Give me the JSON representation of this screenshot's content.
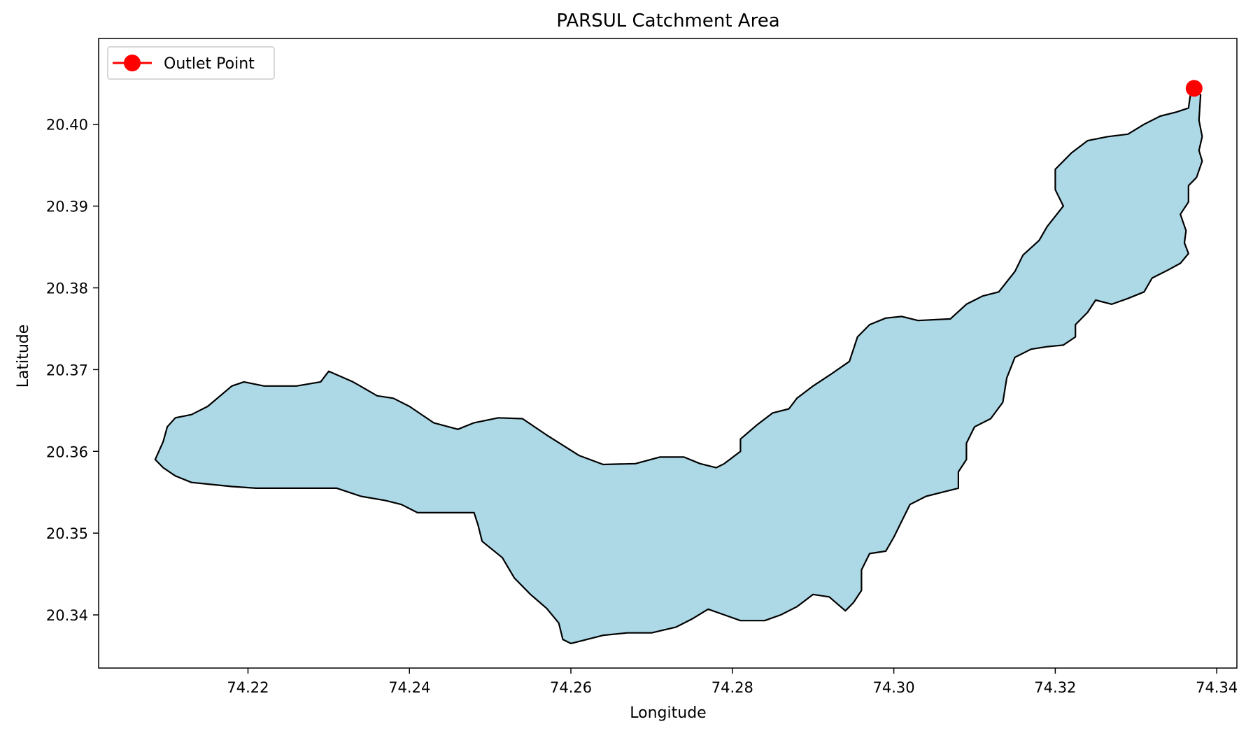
{
  "chart_data": {
    "type": "map",
    "title": "PARSUL Catchment Area",
    "xlabel": "Longitude",
    "ylabel": "Latitude",
    "xlim": [
      74.2015,
      74.3425
    ],
    "ylim": [
      20.3335,
      20.4105
    ],
    "x_ticks": [
      {
        "value": 74.22,
        "label": "74.22"
      },
      {
        "value": 74.24,
        "label": "74.24"
      },
      {
        "value": 74.26,
        "label": "74.26"
      },
      {
        "value": 74.28,
        "label": "74.28"
      },
      {
        "value": 74.3,
        "label": "74.30"
      },
      {
        "value": 74.32,
        "label": "74.32"
      },
      {
        "value": 74.34,
        "label": "74.34"
      }
    ],
    "y_ticks": [
      {
        "value": 20.34,
        "label": "20.34"
      },
      {
        "value": 20.35,
        "label": "20.35"
      },
      {
        "value": 20.36,
        "label": "20.36"
      },
      {
        "value": 20.37,
        "label": "20.37"
      },
      {
        "value": 20.38,
        "label": "20.38"
      },
      {
        "value": 20.39,
        "label": "20.39"
      },
      {
        "value": 20.4,
        "label": "20.40"
      }
    ],
    "grid": false,
    "legend": {
      "placement": "upper-left",
      "entries": [
        {
          "label": "Outlet Point",
          "color": "#ff0000"
        }
      ]
    },
    "catchment": {
      "fill_color": "#add8e6",
      "edge_color": "#000000",
      "boundary": [
        [
          74.2085,
          20.359
        ],
        [
          74.2095,
          20.3612
        ],
        [
          74.21,
          20.363
        ],
        [
          74.211,
          20.3641
        ],
        [
          74.213,
          20.3645
        ],
        [
          74.215,
          20.3655
        ],
        [
          74.218,
          20.368
        ],
        [
          74.2195,
          20.3685
        ],
        [
          74.222,
          20.368
        ],
        [
          74.226,
          20.368
        ],
        [
          74.229,
          20.3685
        ],
        [
          74.23,
          20.3698
        ],
        [
          74.233,
          20.3685
        ],
        [
          74.236,
          20.3668
        ],
        [
          74.238,
          20.3665
        ],
        [
          74.24,
          20.3655
        ],
        [
          74.243,
          20.3635
        ],
        [
          74.246,
          20.3627
        ],
        [
          74.248,
          20.3635
        ],
        [
          74.251,
          20.3641
        ],
        [
          74.254,
          20.364
        ],
        [
          74.257,
          20.362
        ],
        [
          74.261,
          20.3595
        ],
        [
          74.264,
          20.3584
        ],
        [
          74.268,
          20.3585
        ],
        [
          74.271,
          20.3593
        ],
        [
          74.274,
          20.3593
        ],
        [
          74.276,
          20.3585
        ],
        [
          74.278,
          20.358
        ],
        [
          74.279,
          20.3585
        ],
        [
          74.281,
          20.36
        ],
        [
          74.281,
          20.3615
        ],
        [
          74.283,
          20.3632
        ],
        [
          74.285,
          20.3647
        ],
        [
          74.287,
          20.3652
        ],
        [
          74.288,
          20.3665
        ],
        [
          74.29,
          20.368
        ],
        [
          74.292,
          20.3693
        ],
        [
          74.2945,
          20.371
        ],
        [
          74.2955,
          20.374
        ],
        [
          74.297,
          20.3755
        ],
        [
          74.299,
          20.3763
        ],
        [
          74.301,
          20.3765
        ],
        [
          74.303,
          20.376
        ],
        [
          74.307,
          20.3762
        ],
        [
          74.309,
          20.378
        ],
        [
          74.311,
          20.379
        ],
        [
          74.313,
          20.3795
        ],
        [
          74.315,
          20.382
        ],
        [
          74.316,
          20.384
        ],
        [
          74.318,
          20.3858
        ],
        [
          74.319,
          20.3875
        ],
        [
          74.321,
          20.39
        ],
        [
          74.32,
          20.392
        ],
        [
          74.32,
          20.3945
        ],
        [
          74.322,
          20.3965
        ],
        [
          74.324,
          20.398
        ],
        [
          74.3265,
          20.3985
        ],
        [
          74.329,
          20.3988
        ],
        [
          74.331,
          20.4
        ],
        [
          74.333,
          20.401
        ],
        [
          74.335,
          20.4015
        ],
        [
          74.3365,
          20.402
        ],
        [
          74.3368,
          20.404
        ],
        [
          74.3373,
          20.4042
        ],
        [
          74.338,
          20.4036
        ],
        [
          74.3378,
          20.4005
        ],
        [
          74.3382,
          20.3985
        ],
        [
          74.3378,
          20.3968
        ],
        [
          74.3382,
          20.3955
        ],
        [
          74.3375,
          20.3935
        ],
        [
          74.3365,
          20.3925
        ],
        [
          74.3365,
          20.3905
        ],
        [
          74.3355,
          20.389
        ],
        [
          74.3362,
          20.387
        ],
        [
          74.336,
          20.3855
        ],
        [
          74.3365,
          20.3842
        ],
        [
          74.3355,
          20.383
        ],
        [
          74.334,
          20.3822
        ],
        [
          74.332,
          20.3812
        ],
        [
          74.331,
          20.3795
        ],
        [
          74.329,
          20.3787
        ],
        [
          74.327,
          20.378
        ],
        [
          74.325,
          20.3785
        ],
        [
          74.324,
          20.377
        ],
        [
          74.3225,
          20.3755
        ],
        [
          74.3225,
          20.374
        ],
        [
          74.321,
          20.373
        ],
        [
          74.319,
          20.3728
        ],
        [
          74.317,
          20.3725
        ],
        [
          74.315,
          20.3715
        ],
        [
          74.314,
          20.369
        ],
        [
          74.3135,
          20.366
        ],
        [
          74.312,
          20.364
        ],
        [
          74.31,
          20.363
        ],
        [
          74.309,
          20.361
        ],
        [
          74.309,
          20.359
        ],
        [
          74.308,
          20.3575
        ],
        [
          74.308,
          20.3555
        ],
        [
          74.306,
          20.355
        ],
        [
          74.304,
          20.3545
        ],
        [
          74.302,
          20.3535
        ],
        [
          74.301,
          20.3515
        ],
        [
          74.3,
          20.3495
        ],
        [
          74.299,
          20.3478
        ],
        [
          74.297,
          20.3475
        ],
        [
          74.296,
          20.3455
        ],
        [
          74.296,
          20.343
        ],
        [
          74.295,
          20.3415
        ],
        [
          74.294,
          20.3405
        ],
        [
          74.292,
          20.3422
        ],
        [
          74.29,
          20.3425
        ],
        [
          74.288,
          20.341
        ],
        [
          74.286,
          20.34
        ],
        [
          74.284,
          20.3393
        ],
        [
          74.281,
          20.3393
        ],
        [
          74.279,
          20.34
        ],
        [
          74.277,
          20.3407
        ],
        [
          74.275,
          20.3395
        ],
        [
          74.273,
          20.3385
        ],
        [
          74.27,
          20.3378
        ],
        [
          74.267,
          20.3378
        ],
        [
          74.264,
          20.3375
        ],
        [
          74.262,
          20.337
        ],
        [
          74.26,
          20.3365
        ],
        [
          74.259,
          20.337
        ],
        [
          74.2585,
          20.339
        ],
        [
          74.257,
          20.3408
        ],
        [
          74.255,
          20.3425
        ],
        [
          74.253,
          20.3445
        ],
        [
          74.2515,
          20.347
        ],
        [
          74.249,
          20.349
        ],
        [
          74.2485,
          20.351
        ],
        [
          74.248,
          20.3525
        ],
        [
          74.245,
          20.3525
        ],
        [
          74.241,
          20.3525
        ],
        [
          74.239,
          20.3535
        ],
        [
          74.237,
          20.354
        ],
        [
          74.234,
          20.3545
        ],
        [
          74.231,
          20.3555
        ],
        [
          74.227,
          20.3555
        ],
        [
          74.223,
          20.3555
        ],
        [
          74.221,
          20.3555
        ],
        [
          74.218,
          20.3557
        ],
        [
          74.215,
          20.356
        ],
        [
          74.213,
          20.3562
        ],
        [
          74.211,
          20.357
        ],
        [
          74.2095,
          20.358
        ],
        [
          74.2085,
          20.359
        ]
      ]
    },
    "outlet": {
      "name": "Outlet Point",
      "x": 74.3372,
      "y": 20.4044,
      "color": "#ff0000"
    }
  }
}
